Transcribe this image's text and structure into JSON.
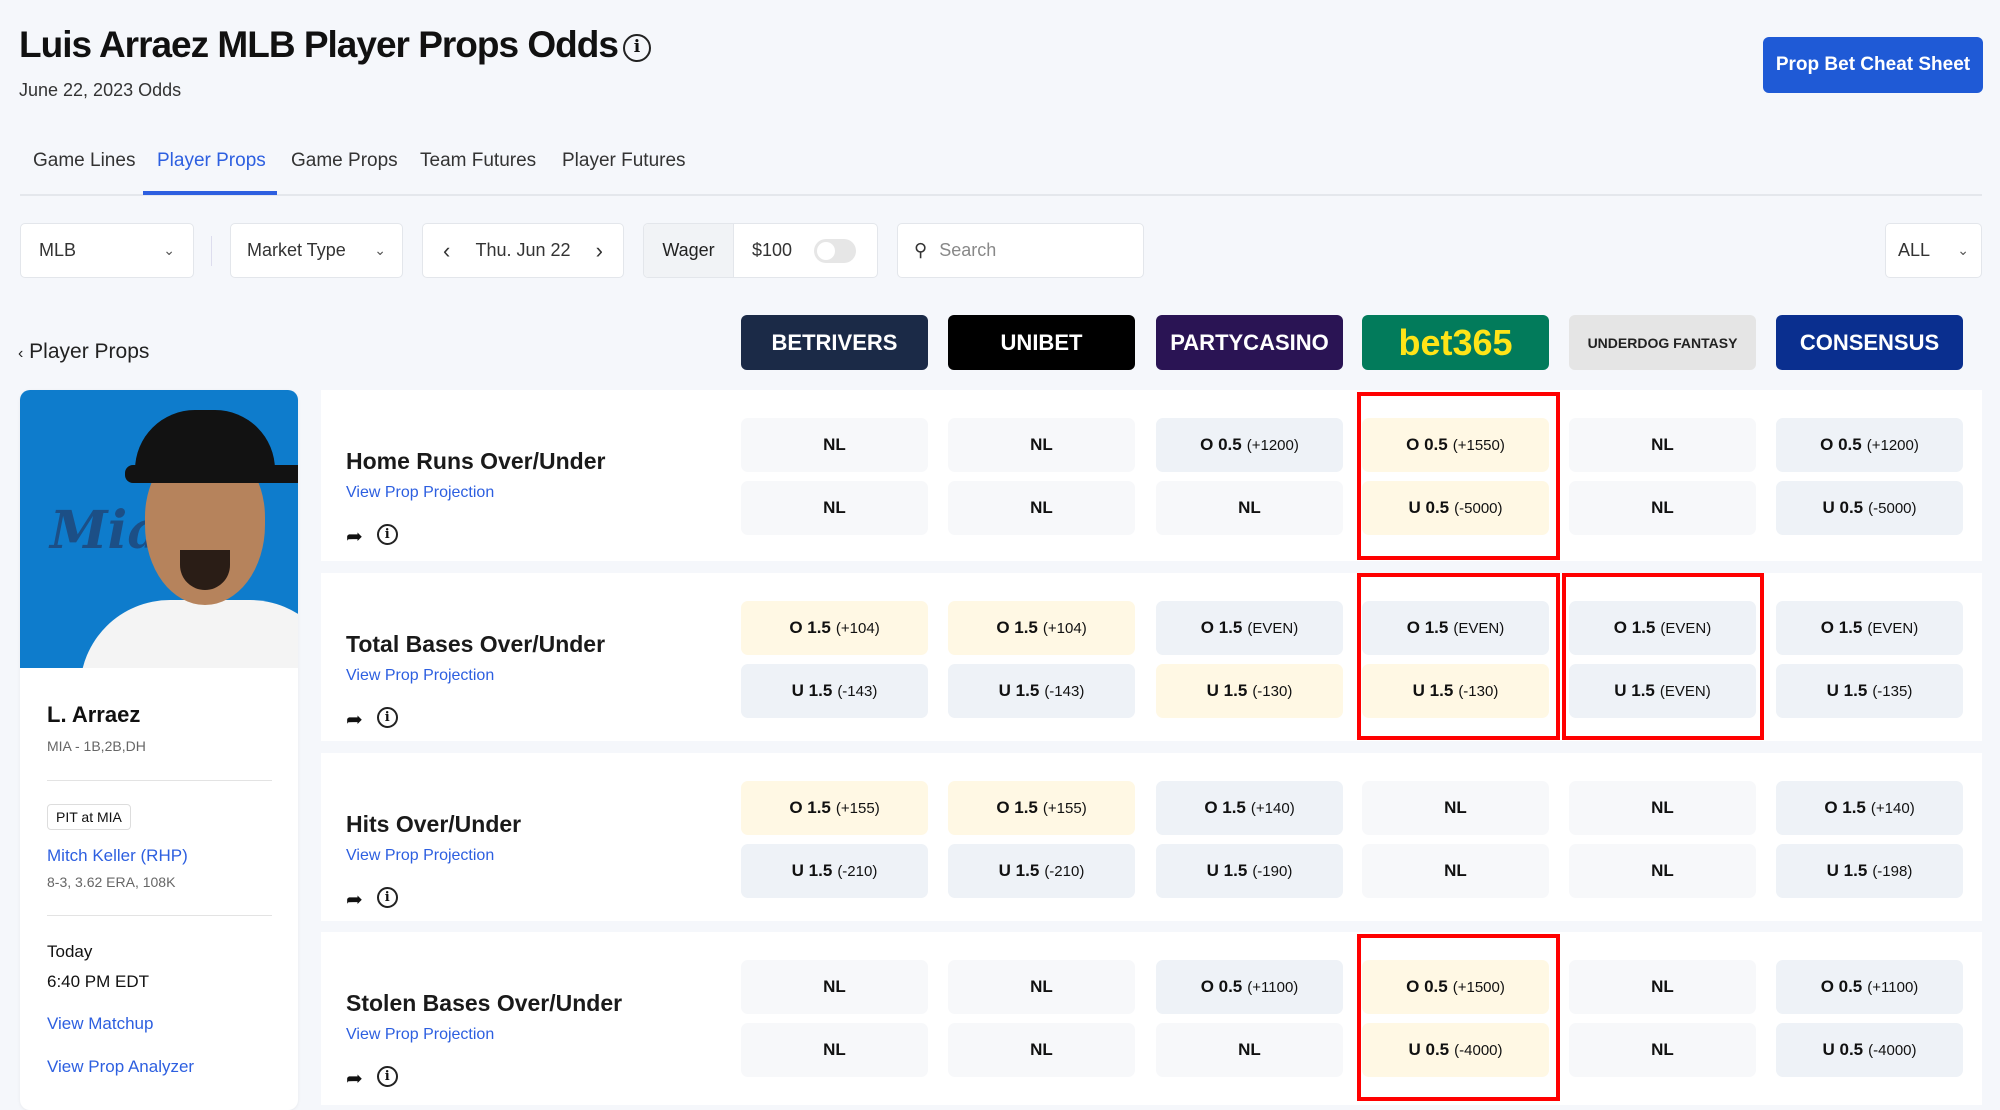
{
  "header": {
    "title": "Luis Arraez MLB Player Props Odds",
    "subtitle": "June 22, 2023 Odds",
    "cheat_sheet": "Prop Bet Cheat Sheet"
  },
  "tabs": [
    "Game Lines",
    "Player Props",
    "Game Props",
    "Team Futures",
    "Player Futures"
  ],
  "active_tab": "Player Props",
  "filters": {
    "league": "MLB",
    "market_type": "Market Type",
    "date": "Thu. Jun 22",
    "wager_label": "Wager",
    "wager_value": "$100",
    "search_placeholder": "Search",
    "all": "ALL"
  },
  "back_label": "Player Props",
  "books": [
    {
      "name": "BETRIVERS",
      "bg": "#1b2a47",
      "color": "#ffffff"
    },
    {
      "name": "UNIBET",
      "bg": "#000000",
      "color": "#ffffff"
    },
    {
      "name": "PARTYCASINO",
      "bg": "#2a1454",
      "color": "#ffffff"
    },
    {
      "name": "bet365",
      "bg": "#027b5b",
      "color": "#ffe418"
    },
    {
      "name": "UNDERDOG FANTASY",
      "bg": "#e5e5e5",
      "color": "#222222"
    },
    {
      "name": "CONSENSUS",
      "bg": "#0a2f8f",
      "color": "#ffffff"
    }
  ],
  "player": {
    "name": "L. Arraez",
    "positions": "MIA - 1B,2B,DH",
    "matchup": "PIT at MIA",
    "pitcher": "Mitch Keller (RHP)",
    "pitcher_stats": "8-3, 3.62 ERA, 108K",
    "day": "Today",
    "time": "6:40 PM EDT",
    "view_matchup": "View Matchup",
    "view_analyzer": "View Prop Analyzer"
  },
  "view_projection": "View Prop Projection",
  "props": [
    {
      "title": "Home Runs Over/Under",
      "over": [
        [
          "NL",
          "",
          ""
        ],
        [
          "NL",
          "",
          ""
        ],
        [
          "O 0.5",
          "(+1200)",
          ""
        ],
        [
          "O 0.5",
          "(+1550)",
          "hl"
        ],
        [
          "NL",
          "",
          ""
        ],
        [
          "O 0.5",
          "(+1200)",
          ""
        ]
      ],
      "under": [
        [
          "NL",
          "",
          ""
        ],
        [
          "NL",
          "",
          ""
        ],
        [
          "NL",
          "",
          ""
        ],
        [
          "U 0.5",
          "(-5000)",
          "hl"
        ],
        [
          "NL",
          "",
          ""
        ],
        [
          "U 0.5",
          "(-5000)",
          ""
        ]
      ]
    },
    {
      "title": "Total Bases Over/Under",
      "over": [
        [
          "O 1.5",
          "(+104)",
          "hl"
        ],
        [
          "O 1.5",
          "(+104)",
          "hl"
        ],
        [
          "O 1.5",
          "(EVEN)",
          ""
        ],
        [
          "O 1.5",
          "(EVEN)",
          ""
        ],
        [
          "O 1.5",
          "(EVEN)",
          ""
        ],
        [
          "O 1.5",
          "(EVEN)",
          ""
        ]
      ],
      "under": [
        [
          "U 1.5",
          "(-143)",
          ""
        ],
        [
          "U 1.5",
          "(-143)",
          ""
        ],
        [
          "U 1.5",
          "(-130)",
          "hl"
        ],
        [
          "U 1.5",
          "(-130)",
          "hl"
        ],
        [
          "U 1.5",
          "(EVEN)",
          ""
        ],
        [
          "U 1.5",
          "(-135)",
          ""
        ]
      ]
    },
    {
      "title": "Hits Over/Under",
      "over": [
        [
          "O 1.5",
          "(+155)",
          "hl"
        ],
        [
          "O 1.5",
          "(+155)",
          "hl"
        ],
        [
          "O 1.5",
          "(+140)",
          ""
        ],
        [
          "NL",
          "",
          ""
        ],
        [
          "NL",
          "",
          ""
        ],
        [
          "O 1.5",
          "(+140)",
          ""
        ]
      ],
      "under": [
        [
          "U 1.5",
          "(-210)",
          ""
        ],
        [
          "U 1.5",
          "(-210)",
          ""
        ],
        [
          "U 1.5",
          "(-190)",
          ""
        ],
        [
          "NL",
          "",
          ""
        ],
        [
          "NL",
          "",
          ""
        ],
        [
          "U 1.5",
          "(-198)",
          ""
        ]
      ]
    },
    {
      "title": "Stolen Bases Over/Under",
      "over": [
        [
          "NL",
          "",
          ""
        ],
        [
          "NL",
          "",
          ""
        ],
        [
          "O 0.5",
          "(+1100)",
          ""
        ],
        [
          "O 0.5",
          "(+1500)",
          "hl"
        ],
        [
          "NL",
          "",
          ""
        ],
        [
          "O 0.5",
          "(+1100)",
          ""
        ]
      ],
      "under": [
        [
          "NL",
          "",
          ""
        ],
        [
          "NL",
          "",
          ""
        ],
        [
          "NL",
          "",
          ""
        ],
        [
          "U 0.5",
          "(-4000)",
          "hl"
        ],
        [
          "NL",
          "",
          ""
        ],
        [
          "U 0.5",
          "(-4000)",
          ""
        ]
      ]
    }
  ],
  "colors": {
    "accent": "#2d5fe0",
    "highlight": "#fff8e4",
    "annotation": "#ff0000"
  }
}
